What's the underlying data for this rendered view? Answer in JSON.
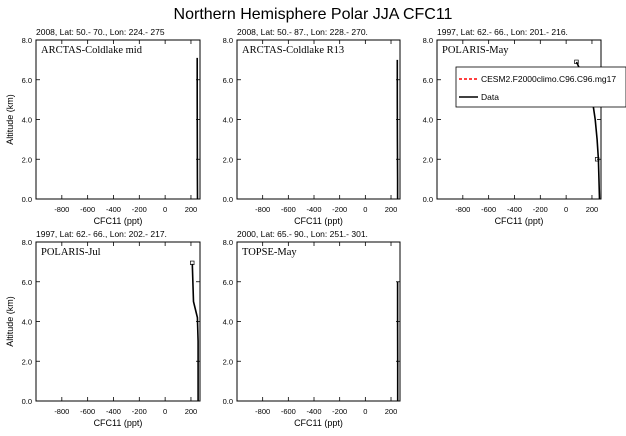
{
  "page_title": "Northern Hemisphere Polar JJA CFC11",
  "legend": {
    "placement": "top-right",
    "entries": [
      {
        "label": "CESM2.F2000climo.C96.C96.mg17",
        "color": "#ff0000",
        "dash": "dashed"
      },
      {
        "label": "Data",
        "color": "#000000",
        "dash": "solid"
      }
    ]
  },
  "chart_data": [
    {
      "type": "line",
      "header": "2008, Lat:  50.- 70., Lon: 224.- 275",
      "title": "ARCTAS-Coldlake mid",
      "xlabel": "CFC11 (ppt)",
      "ylabel": "Altitude (km)",
      "xlim": [
        -1000,
        270
      ],
      "ylim": [
        0,
        8
      ],
      "xticks": [
        "-800",
        "-600",
        "-400",
        "-200",
        "0",
        "200"
      ],
      "yticks": [
        "0.0",
        "2.0",
        "4.0",
        "6.0",
        "8.0"
      ],
      "series": [
        {
          "name": "Data",
          "color": "#000000",
          "points": [
            [
              248,
              7.1
            ],
            [
              248,
              5.0
            ],
            [
              249,
              3.0
            ],
            [
              250,
              1.0
            ],
            [
              251,
              0.0
            ]
          ],
          "markers": []
        }
      ]
    },
    {
      "type": "line",
      "header": "2008, Lat:  50.- 87., Lon: 228.- 270.",
      "title": "ARCTAS-Coldlake R13",
      "xlabel": "CFC11 (ppt)",
      "ylabel": "",
      "xlim": [
        -1000,
        270
      ],
      "ylim": [
        0,
        8
      ],
      "xticks": [
        "-800",
        "-600",
        "-400",
        "-200",
        "0",
        "200"
      ],
      "yticks": [
        "0.0",
        "2.0",
        "4.0",
        "6.0",
        "8.0"
      ],
      "series": [
        {
          "name": "Data",
          "color": "#000000",
          "points": [
            [
              249,
              7.0
            ],
            [
              249,
              5.0
            ],
            [
              250,
              3.0
            ],
            [
              251,
              1.0
            ],
            [
              251,
              0.0
            ]
          ],
          "markers": []
        }
      ]
    },
    {
      "type": "line",
      "header": "1997, Lat: 62.- 66., Lon: 201.- 216.",
      "title": "POLARIS-May",
      "xlabel": "CFC11 (ppt)",
      "ylabel": "",
      "xlim": [
        -1000,
        270
      ],
      "ylim": [
        0,
        8
      ],
      "xticks": [
        "-800",
        "-600",
        "-400",
        "-200",
        "0",
        "200"
      ],
      "yticks": [
        "0.0",
        "2.0",
        "4.0",
        "6.0",
        "8.0"
      ],
      "series": [
        {
          "name": "Data",
          "color": "#000000",
          "points": [
            [
              80,
              6.9
            ],
            [
              130,
              6.2
            ],
            [
              200,
              5.1
            ],
            [
              225,
              4.0
            ],
            [
              240,
              3.0
            ],
            [
              250,
              2.0
            ],
            [
              258,
              0.0
            ]
          ],
          "markers": [
            [
              80,
              6.9
            ],
            [
              235,
              5.0
            ],
            [
              240,
              2.0
            ]
          ]
        }
      ]
    },
    {
      "type": "line",
      "header": "1997, Lat: 62.- 66., Lon: 202.- 217.",
      "title": "POLARIS-Jul",
      "xlabel": "CFC11 (ppt)",
      "ylabel": "Altitude (km)",
      "xlim": [
        -1000,
        270
      ],
      "ylim": [
        0,
        8
      ],
      "xticks": [
        "-800",
        "-600",
        "-400",
        "-200",
        "0",
        "200"
      ],
      "yticks": [
        "0.0",
        "2.0",
        "4.0",
        "6.0",
        "8.0"
      ],
      "series": [
        {
          "name": "Data",
          "color": "#000000",
          "points": [
            [
              210,
              6.9
            ],
            [
              220,
              5.0
            ],
            [
              250,
              4.2
            ],
            [
              255,
              3.0
            ],
            [
              255,
              0.0
            ]
          ],
          "markers": [
            [
              210,
              6.95
            ]
          ]
        }
      ]
    },
    {
      "type": "line",
      "header": "2000, Lat: 65.- 90., Lon: 251.- 301.",
      "title": "TOPSE-May",
      "xlabel": "CFC11 (ppt)",
      "ylabel": "",
      "xlim": [
        -1000,
        270
      ],
      "ylim": [
        0,
        8
      ],
      "xticks": [
        "-800",
        "-600",
        "-400",
        "-200",
        "0",
        "200"
      ],
      "yticks": [
        "0.0",
        "2.0",
        "4.0",
        "6.0",
        "8.0"
      ],
      "series": [
        {
          "name": "Data",
          "color": "#000000",
          "points": [
            [
              251,
              6.0
            ],
            [
              251,
              4.0
            ],
            [
              252,
              2.0
            ],
            [
              252,
              0.0
            ]
          ],
          "markers": []
        }
      ]
    }
  ]
}
